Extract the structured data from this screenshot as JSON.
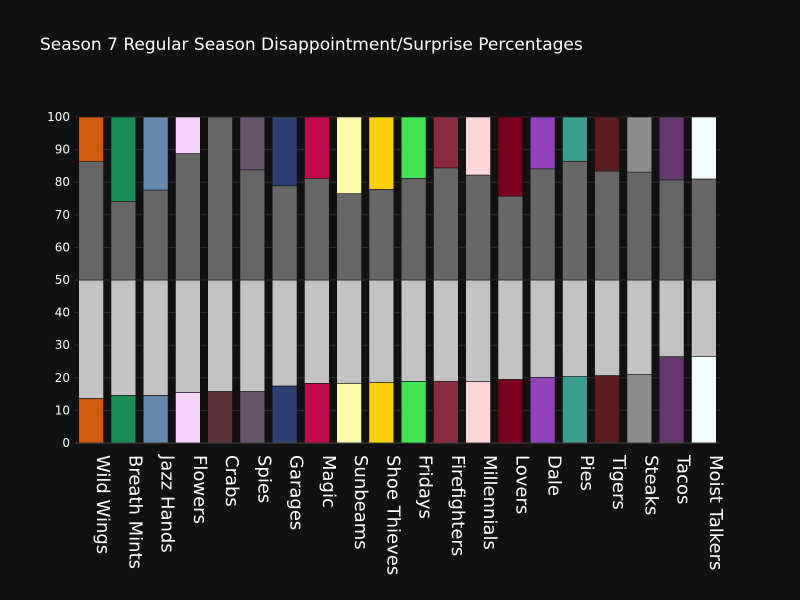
{
  "chart_data": {
    "type": "bar",
    "stacked": true,
    "title": "Season 7 Regular Season Disappointment/Surprise Percentages",
    "xlabel": "",
    "ylabel": "",
    "ylim": [
      0,
      100
    ],
    "yticks": [
      "0",
      "10",
      "20",
      "30",
      "40",
      "50",
      "60",
      "70",
      "80",
      "90",
      "100"
    ],
    "grid": true,
    "legend": "none",
    "categories": [
      "Wild Wings",
      "Breath Mints",
      "Jazz Hands",
      "Flowers",
      "Crabs",
      "Spies",
      "Garages",
      "Magic",
      "Sunbeams",
      "Shoe Thieves",
      "Fridays",
      "Firefighters",
      "Millennials",
      "Lovers",
      "Dale",
      "Pies",
      "Tigers",
      "Steaks",
      "Tacos",
      "Moist Talkers"
    ],
    "team_colors": [
      "#d15a0f",
      "#178f55",
      "#6388ad",
      "#f7d1ff",
      "#593037",
      "#67556b",
      "#2b4075",
      "#c2094d",
      "#fffaa8",
      "#ffce0a",
      "#3ee652",
      "#8c2a3e",
      "#ffd4d8",
      "#780018",
      "#9141ba",
      "#399d8f",
      "#5c1c1c",
      "#8c8d8f",
      "#64376e",
      "#f5feff"
    ],
    "neutral_colors": {
      "lower_gray": "#c3c3c3",
      "upper_gray": "#676767"
    },
    "series": [
      {
        "values": [
          13.7,
          14.6,
          14.6,
          15.5,
          15.8,
          15.8,
          17.5,
          18.3,
          18.3,
          18.6,
          18.9,
          18.9,
          18.9,
          19.5,
          20.1,
          20.4,
          20.7,
          21.0,
          26.5,
          26.5
        ]
      },
      {
        "values": [
          36.3,
          35.4,
          35.4,
          34.5,
          34.2,
          34.2,
          32.5,
          31.7,
          31.7,
          31.4,
          31.1,
          31.1,
          31.1,
          30.5,
          29.9,
          29.6,
          29.3,
          29.0,
          23.5,
          23.5
        ]
      },
      {
        "values": [
          36.3,
          24.1,
          27.6,
          38.8,
          50.0,
          33.8,
          28.9,
          31.2,
          26.5,
          27.8,
          31.2,
          34.4,
          32.2,
          25.7,
          34.1,
          36.4,
          33.4,
          33.1,
          30.7,
          31.0
        ]
      },
      {
        "values": [
          13.7,
          25.9,
          22.4,
          11.2,
          0.0,
          16.2,
          21.1,
          18.8,
          23.5,
          22.2,
          18.8,
          15.6,
          17.8,
          24.3,
          15.9,
          13.6,
          16.6,
          16.9,
          19.3,
          19.0
        ]
      }
    ]
  }
}
